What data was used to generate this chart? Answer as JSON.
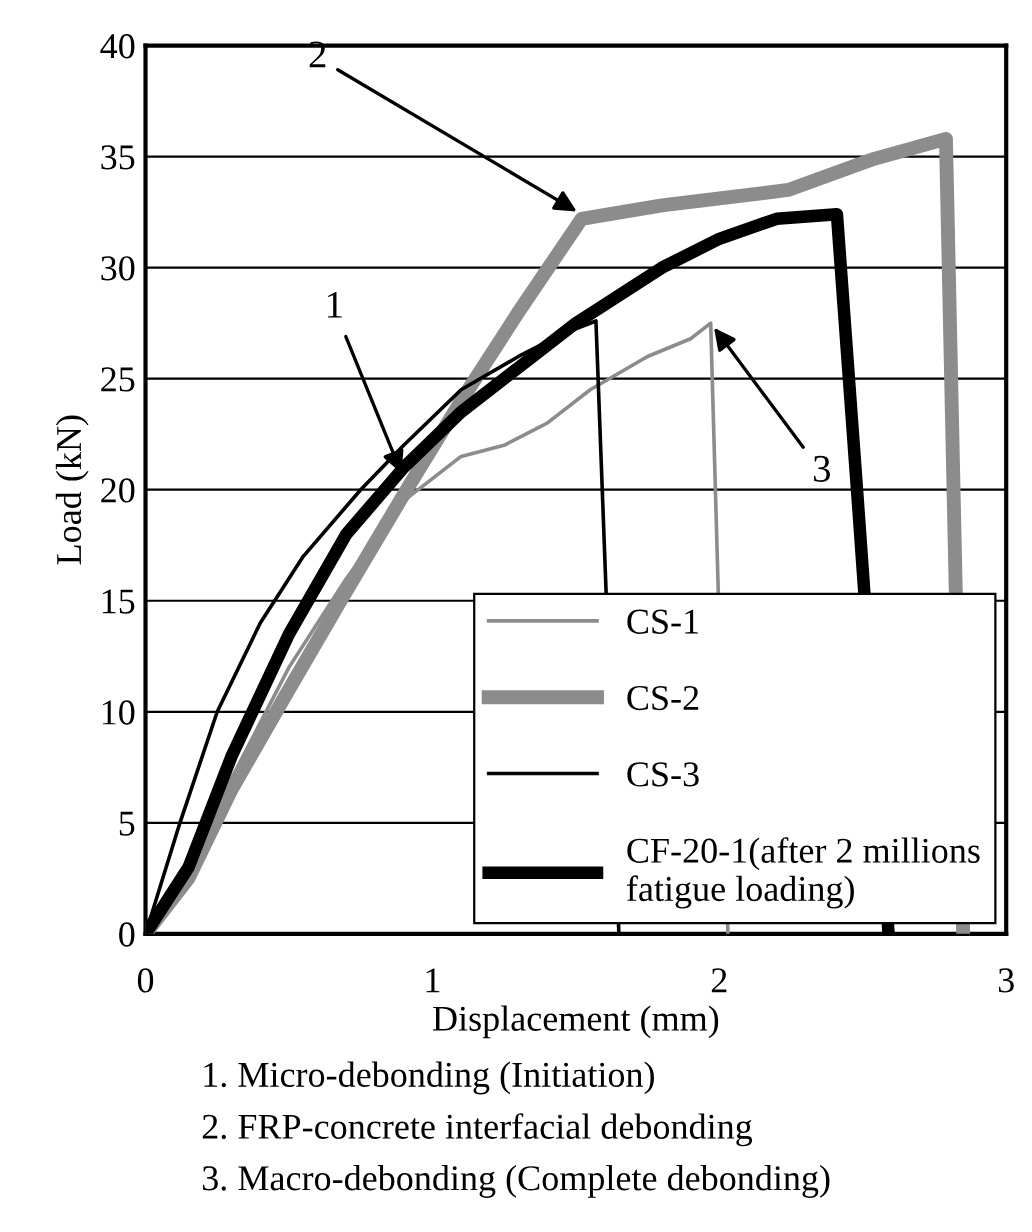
{
  "chart_data": {
    "type": "line",
    "xlabel": "Displacement (mm)",
    "ylabel": "Load (kN)",
    "xlim": [
      0,
      3
    ],
    "xticks": [
      0,
      1,
      2,
      3
    ],
    "ylim": [
      0,
      40
    ],
    "yticks": [
      0,
      5,
      10,
      15,
      20,
      25,
      30,
      35,
      40
    ],
    "grid": "y",
    "legend": "bottom right",
    "marker": "none",
    "line_style": "solid",
    "series": [
      {
        "name": "CS-1",
        "color": "#8c8c8c",
        "x": [
          0,
          0.15,
          0.3,
          0.5,
          0.7,
          0.9,
          1.0,
          1.1,
          1.25,
          1.4,
          1.55,
          1.75,
          1.9,
          1.97,
          2.03
        ],
        "values": [
          0,
          3,
          7,
          12,
          16,
          19.5,
          20.5,
          21.5,
          22,
          23,
          24.5,
          26,
          26.8,
          27.5,
          0
        ]
      },
      {
        "name": "CS-2",
        "color": "#8c8c8c",
        "x": [
          0,
          0.15,
          0.3,
          0.5,
          0.68,
          0.91,
          1.1,
          1.3,
          1.52,
          1.8,
          2.24,
          2.54,
          2.79,
          2.85
        ],
        "values": [
          0,
          2.5,
          6.5,
          11,
          15,
          20,
          24,
          28,
          32.2,
          32.8,
          33.5,
          34.9,
          35.8,
          0
        ]
      },
      {
        "name": "CS-3",
        "color": "#000000",
        "x": [
          0,
          0.12,
          0.25,
          0.4,
          0.55,
          0.75,
          0.9,
          1.1,
          1.3,
          1.45,
          1.57,
          1.65
        ],
        "values": [
          0,
          5,
          10,
          14,
          17,
          20,
          22,
          24.5,
          26,
          27,
          27.6,
          0
        ]
      },
      {
        "name": "CF-20-1(after 2 millions\nfatigue loading)",
        "color": "#000000",
        "x": [
          0,
          0.15,
          0.3,
          0.5,
          0.7,
          0.9,
          1.1,
          1.3,
          1.5,
          1.8,
          2.0,
          2.2,
          2.41,
          2.48,
          2.59
        ],
        "values": [
          0,
          3,
          8,
          13.5,
          18,
          21,
          23.5,
          25.5,
          27.5,
          30,
          31.3,
          32.2,
          32.4,
          20,
          0
        ]
      }
    ],
    "annotations": [
      {
        "text": "1",
        "x": 0.9,
        "y": 20.5
      },
      {
        "text": "2",
        "x": 1.52,
        "y": 32.4
      },
      {
        "text": "3",
        "x": 1.97,
        "y": 27.5
      },
      "1. Micro-debonding (Initiation)",
      "2. FRP-concrete interfacial debonding",
      "3. Macro-debonding (Complete debonding)"
    ]
  }
}
